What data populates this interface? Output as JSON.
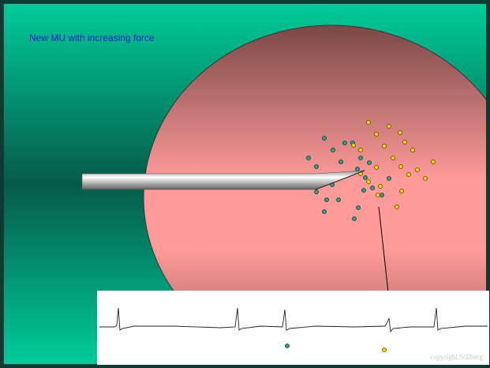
{
  "slide": {
    "title": "New  MU with increasing force",
    "copyright": "copyright Stålberg"
  }
}
